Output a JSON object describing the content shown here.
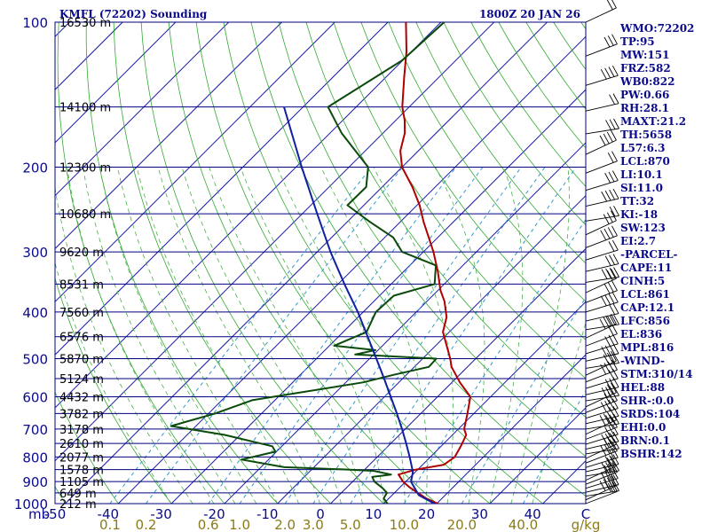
{
  "chart_data": {
    "type": "line",
    "title": "KMFL (72202) Sounding",
    "timestamp": "1800Z 20 JAN 26",
    "x_axis": {
      "unit": "°C",
      "xlim": [
        -50,
        50
      ],
      "tick_values": [
        -50,
        -40,
        -30,
        -20,
        -10,
        0,
        10,
        20,
        30,
        40,
        50
      ],
      "tick_labels": [
        "-50",
        "-40",
        "-30",
        "-20",
        "-10",
        "0",
        "10",
        "20",
        "30",
        "40",
        "C"
      ],
      "corner_label": "mb"
    },
    "y_axis": {
      "unit": "mb",
      "scale": "log",
      "ylim": [
        1000,
        100
      ],
      "pressure_labels": [
        "100",
        "200",
        "300",
        "400",
        "500",
        "600",
        "700",
        "800",
        "900",
        "1000"
      ]
    },
    "mixing_ratio_labels": {
      "values": [
        "0.1",
        "0.2",
        "0.6",
        "1.0",
        "2.0",
        "3.0",
        "5.0",
        "10.0",
        "20.0",
        "40.0"
      ],
      "unit": "g/kg"
    },
    "height_labels": [
      {
        "p": 100,
        "label": "16530 m"
      },
      {
        "p": 150,
        "label": "14100 m"
      },
      {
        "p": 200,
        "label": "12300 m"
      },
      {
        "p": 250,
        "label": "10680 m"
      },
      {
        "p": 300,
        "label": "9620 m"
      },
      {
        "p": 350,
        "label": "8531 m"
      },
      {
        "p": 400,
        "label": "7560 m"
      },
      {
        "p": 450,
        "label": "6576 m"
      },
      {
        "p": 500,
        "label": "5870 m"
      },
      {
        "p": 550,
        "label": "5124 m"
      },
      {
        "p": 600,
        "label": "4432 m"
      },
      {
        "p": 650,
        "label": "3782 m"
      },
      {
        "p": 700,
        "label": "3178 m"
      },
      {
        "p": 750,
        "label": "2610 m"
      },
      {
        "p": 800,
        "label": "2077 m"
      },
      {
        "p": 850,
        "label": "1578 m"
      },
      {
        "p": 900,
        "label": "1105 m"
      },
      {
        "p": 950,
        "label": "649 m"
      },
      {
        "p": 1000,
        "label": "212 m"
      }
    ],
    "series": [
      {
        "name": "Temperature",
        "color": "#b00000",
        "points": [
          {
            "p": 1013,
            "t": 21.0
          },
          {
            "p": 1000,
            "t": 20.2
          },
          {
            "p": 975,
            "t": 17.0
          },
          {
            "p": 950,
            "t": 14.4
          },
          {
            "p": 925,
            "t": 11.8
          },
          {
            "p": 900,
            "t": 9.5
          },
          {
            "p": 870,
            "t": 7.3
          },
          {
            "p": 850,
            "t": 9.6
          },
          {
            "p": 830,
            "t": 14.0
          },
          {
            "p": 800,
            "t": 14.6
          },
          {
            "p": 760,
            "t": 13.7
          },
          {
            "p": 720,
            "t": 12.6
          },
          {
            "p": 700,
            "t": 11.1
          },
          {
            "p": 650,
            "t": 8.8
          },
          {
            "p": 600,
            "t": 6.2
          },
          {
            "p": 560,
            "t": 1.5
          },
          {
            "p": 520,
            "t": -3.0
          },
          {
            "p": 500,
            "t": -4.8
          },
          {
            "p": 470,
            "t": -7.9
          },
          {
            "p": 440,
            "t": -11.2
          },
          {
            "p": 410,
            "t": -13.3
          },
          {
            "p": 380,
            "t": -16.7
          },
          {
            "p": 360,
            "t": -19.6
          },
          {
            "p": 330,
            "t": -23.5
          },
          {
            "p": 300,
            "t": -28.1
          },
          {
            "p": 280,
            "t": -31.7
          },
          {
            "p": 260,
            "t": -35.6
          },
          {
            "p": 240,
            "t": -39.5
          },
          {
            "p": 220,
            "t": -44.3
          },
          {
            "p": 200,
            "t": -50.0
          },
          {
            "p": 185,
            "t": -53.4
          },
          {
            "p": 170,
            "t": -55.9
          },
          {
            "p": 160,
            "t": -58.3
          },
          {
            "p": 150,
            "t": -61.3
          },
          {
            "p": 130,
            "t": -66.6
          },
          {
            "p": 115,
            "t": -71.0
          },
          {
            "p": 100,
            "t": -76.6
          }
        ]
      },
      {
        "name": "Dewpoint",
        "color": "#0a4a0a",
        "points": [
          {
            "p": 1013,
            "t": 11.6
          },
          {
            "p": 975,
            "t": 9.0
          },
          {
            "p": 950,
            "t": 8.6
          },
          {
            "p": 930,
            "t": 7.0
          },
          {
            "p": 900,
            "t": 4.1
          },
          {
            "p": 880,
            "t": 2.8
          },
          {
            "p": 870,
            "t": 5.9
          },
          {
            "p": 855,
            "t": 2.0
          },
          {
            "p": 850,
            "t": -2.7
          },
          {
            "p": 840,
            "t": -15.6
          },
          {
            "p": 810,
            "t": -25.1
          },
          {
            "p": 780,
            "t": -20.2
          },
          {
            "p": 760,
            "t": -21.8
          },
          {
            "p": 720,
            "t": -32.9
          },
          {
            "p": 690,
            "t": -44.7
          },
          {
            "p": 650,
            "t": -38.8
          },
          {
            "p": 610,
            "t": -34.3
          },
          {
            "p": 560,
            "t": -16.8
          },
          {
            "p": 540,
            "t": -12.4
          },
          {
            "p": 520,
            "t": -7.3
          },
          {
            "p": 500,
            "t": -7.4
          },
          {
            "p": 490,
            "t": -23.5
          },
          {
            "p": 480,
            "t": -20.5
          },
          {
            "p": 470,
            "t": -29.1
          },
          {
            "p": 440,
            "t": -25.6
          },
          {
            "p": 400,
            "t": -27.6
          },
          {
            "p": 370,
            "t": -27.3
          },
          {
            "p": 350,
            "t": -21.8
          },
          {
            "p": 320,
            "t": -25.1
          },
          {
            "p": 300,
            "t": -34.0
          },
          {
            "p": 280,
            "t": -38.4
          },
          {
            "p": 260,
            "t": -45.7
          },
          {
            "p": 240,
            "t": -53.1
          },
          {
            "p": 220,
            "t": -53.0
          },
          {
            "p": 200,
            "t": -56.4
          },
          {
            "p": 170,
            "t": -67.8
          },
          {
            "p": 150,
            "t": -75.3
          },
          {
            "p": 120,
            "t": -70.1
          },
          {
            "p": 100,
            "t": -69.4
          }
        ]
      },
      {
        "name": "Parcel",
        "color": "#1020a0",
        "points": [
          {
            "p": 1013,
            "t": 21.0
          },
          {
            "p": 960,
            "t": 15.0
          },
          {
            "p": 900,
            "t": 11.0
          },
          {
            "p": 861,
            "t": 9.6
          },
          {
            "p": 850,
            "t": 9.0
          },
          {
            "p": 800,
            "t": 6.1
          },
          {
            "p": 750,
            "t": 2.9
          },
          {
            "p": 700,
            "t": -0.6
          },
          {
            "p": 650,
            "t": -4.5
          },
          {
            "p": 600,
            "t": -8.8
          },
          {
            "p": 550,
            "t": -13.5
          },
          {
            "p": 500,
            "t": -18.7
          },
          {
            "p": 450,
            "t": -24.5
          },
          {
            "p": 400,
            "t": -31.0
          },
          {
            "p": 350,
            "t": -38.8
          },
          {
            "p": 300,
            "t": -47.5
          },
          {
            "p": 250,
            "t": -57.2
          },
          {
            "p": 200,
            "t": -68.9
          },
          {
            "p": 150,
            "t": -83.6
          }
        ]
      }
    ],
    "wind_barbs": {
      "count": 52
    }
  },
  "indices": [
    "WMO:72202",
    "TP:95",
    "MW:151",
    "FRZ:582",
    "WB0:822",
    "PW:0.66",
    "RH:28.1",
    "MAXT:21.2",
    "TH:5658",
    "L57:6.3",
    "LCL:870",
    "LI:10.1",
    "SI:11.0",
    "TT:32",
    "KI:-18",
    "SW:123",
    "EI:2.7",
    "-PARCEL-",
    "CAPE:11",
    "CINH:5",
    "LCL:861",
    "CAP:12.1",
    "LFC:856",
    "EL:836",
    "MPL:816",
    "-WIND-",
    "STM:310/14",
    "HEL:88",
    "SHR-:0.0",
    "SRDS:104",
    "EHI:0.0",
    "BRN:0.1",
    "BSHR:142"
  ],
  "colors": {
    "isobar": "#000080",
    "isotherm": "#1a1aa8",
    "dry_adiabat": "#33aa33",
    "moist_adiabat": "#4ab04a",
    "mixing_ratio": "#3399cc",
    "text_blue": "#0a0a8a",
    "mr_label": "#8a7a1a"
  }
}
